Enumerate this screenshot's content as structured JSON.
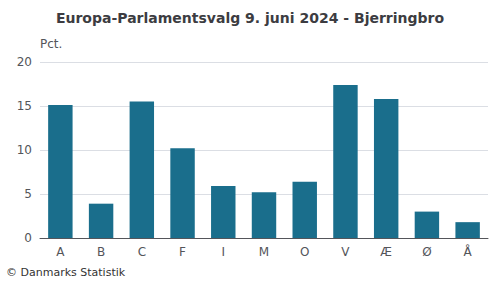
{
  "chart_data": {
    "type": "bar",
    "title": "Europa-Parlamentsvalg 9. juni 2024 - Bjerringbro",
    "categories": [
      "A",
      "B",
      "C",
      "F",
      "I",
      "M",
      "O",
      "V",
      "Æ",
      "Ø",
      "Å"
    ],
    "values": [
      15.1,
      3.9,
      15.5,
      10.2,
      5.9,
      5.2,
      6.4,
      17.4,
      15.8,
      3.0,
      1.8
    ],
    "color": "#1a6e8c",
    "ylabel": "Pct.",
    "annotations": [
      "© Danmarks Statistik"
    ],
    "ylim": [
      0,
      20
    ],
    "yticks": [
      0,
      5,
      10,
      15,
      20
    ],
    "grid": true
  }
}
